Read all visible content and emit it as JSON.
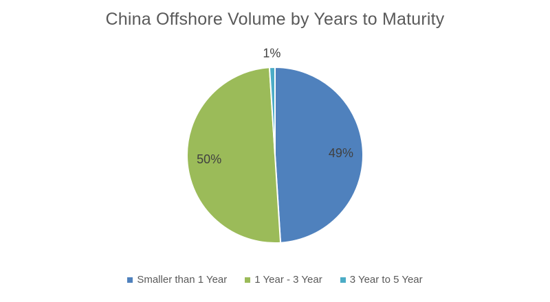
{
  "chart_data": {
    "type": "pie",
    "title": "China Offshore Volume by Years to Maturity",
    "categories": [
      "Smaller than 1 Year",
      "1 Year - 3 Year",
      "3 Year to 5 Year"
    ],
    "values": [
      49,
      50,
      1
    ],
    "data_labels": [
      "49%",
      "50%",
      "1%"
    ],
    "colors": [
      "#4F81BD",
      "#9BBB59",
      "#4BACC6"
    ],
    "start_angle_deg": 0,
    "direction": "clockwise",
    "legend_position": "bottom",
    "slice_border_color": "#FFFFFF",
    "title_color": "#595959",
    "data_label_color": "#404040",
    "legend_text_color": "#595959",
    "background_color": "#FFFFFF"
  },
  "legend": {
    "items": [
      {
        "label": "Smaller than 1 Year",
        "color": "#4F81BD"
      },
      {
        "label": "1 Year - 3 Year",
        "color": "#9BBB59"
      },
      {
        "label": "3 Year to 5 Year",
        "color": "#4BACC6"
      }
    ]
  }
}
